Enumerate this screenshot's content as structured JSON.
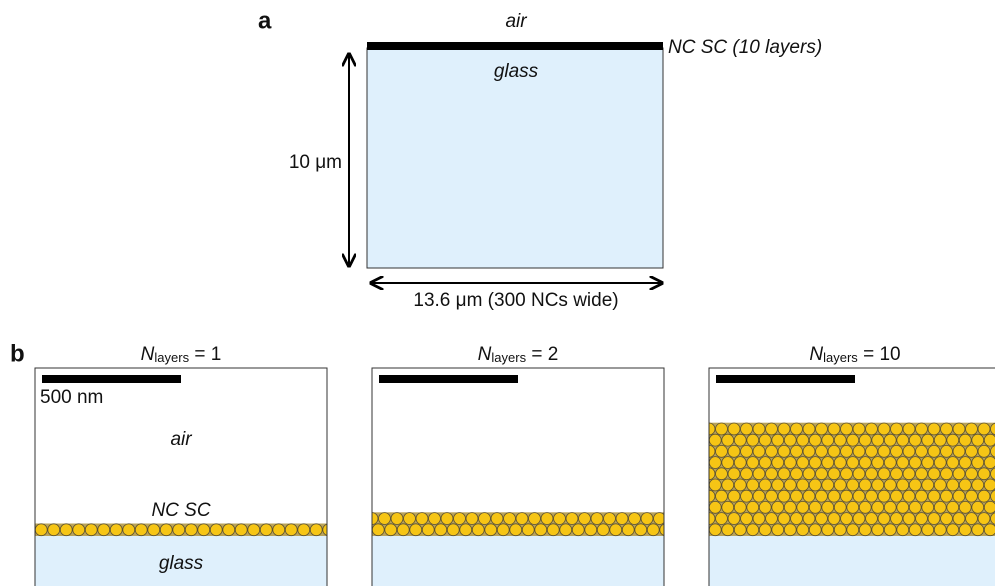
{
  "panel_a": {
    "label": "a",
    "top_medium": "air",
    "layer_label": "NC SC (10 layers)",
    "substrate": "glass",
    "height_label": "10 μm",
    "width_label": "13.6 μm (300 NCs wide)"
  },
  "panel_b": {
    "label": "b",
    "scale_bar_label": "500 nm",
    "top_medium": "air",
    "layer_label": "NC SC",
    "substrate": "glass",
    "panels": [
      {
        "symbol": "N",
        "subscript": "layers",
        "equals": "=",
        "value": 1
      },
      {
        "symbol": "N",
        "subscript": "layers",
        "equals": "=",
        "value": 2
      },
      {
        "symbol": "N",
        "subscript": "layers",
        "equals": "=",
        "value": 10
      }
    ]
  }
}
